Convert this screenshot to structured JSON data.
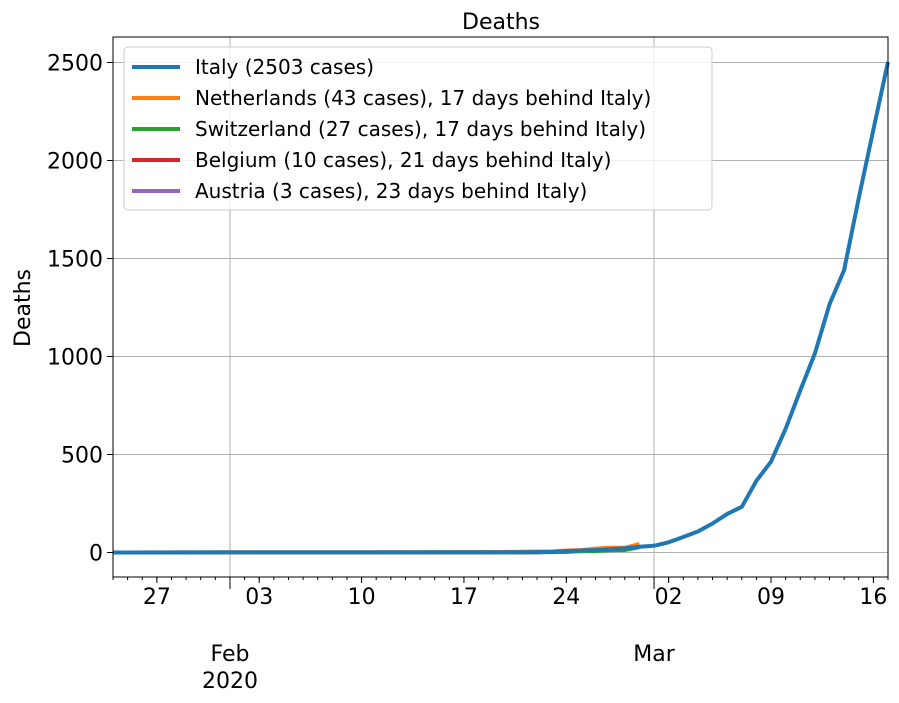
{
  "chart_data": {
    "type": "line",
    "title": "Deaths",
    "xlabel": "",
    "ylabel": "Deaths",
    "x_axis": {
      "type": "date",
      "range": [
        "2020-01-24",
        "2020-03-17"
      ],
      "major_ticks": [
        {
          "date": "2020-01-27",
          "label": "27"
        },
        {
          "date": "2020-02-03",
          "label": "03"
        },
        {
          "date": "2020-02-10",
          "label": "10"
        },
        {
          "date": "2020-02-17",
          "label": "17"
        },
        {
          "date": "2020-02-24",
          "label": "24"
        },
        {
          "date": "2020-03-02",
          "label": "02"
        },
        {
          "date": "2020-03-09",
          "label": "09"
        },
        {
          "date": "2020-03-16",
          "label": "16"
        }
      ],
      "month_labels": [
        {
          "date": "2020-02-01",
          "label": "Feb",
          "sublabel": "2020"
        },
        {
          "date": "2020-03-01",
          "label": "Mar",
          "sublabel": ""
        }
      ]
    },
    "ylim": [
      -125,
      2630
    ],
    "yticks": [
      0,
      500,
      1000,
      1500,
      2000,
      2500
    ],
    "grid": true,
    "legend_position": "top-left",
    "series": [
      {
        "name": "Italy (2503 cases)",
        "color": "#1f77b4",
        "x": [
          "2020-01-24",
          "2020-02-21",
          "2020-02-22",
          "2020-02-23",
          "2020-02-24",
          "2020-02-25",
          "2020-02-26",
          "2020-02-27",
          "2020-02-28",
          "2020-02-29",
          "2020-03-01",
          "2020-03-02",
          "2020-03-03",
          "2020-03-04",
          "2020-03-05",
          "2020-03-06",
          "2020-03-07",
          "2020-03-08",
          "2020-03-09",
          "2020-03-10",
          "2020-03-11",
          "2020-03-12",
          "2020-03-13",
          "2020-03-14",
          "2020-03-15",
          "2020-03-16",
          "2020-03-17"
        ],
        "y": [
          0,
          1,
          2,
          3,
          7,
          10,
          12,
          17,
          21,
          29,
          34,
          52,
          79,
          107,
          148,
          197,
          233,
          366,
          463,
          631,
          827,
          1016,
          1266,
          1441,
          1809,
          2158,
          2503
        ]
      },
      {
        "name": "Netherlands (43 cases), 17 days behind Italy)",
        "color": "#ff7f0e",
        "x": [
          "2020-01-24",
          "2020-02-17",
          "2020-02-18",
          "2020-02-19",
          "2020-02-20",
          "2020-02-21",
          "2020-02-22",
          "2020-02-23",
          "2020-02-24",
          "2020-02-25",
          "2020-02-26",
          "2020-02-27",
          "2020-02-28",
          "2020-02-29"
        ],
        "y": [
          0,
          1,
          1,
          2,
          3,
          4,
          5,
          5,
          10,
          12,
          20,
          24,
          24,
          43
        ]
      },
      {
        "name": "Switzerland (27 cases), 17 days behind Italy)",
        "color": "#2ca02c",
        "x": [
          "2020-01-24",
          "2020-02-21",
          "2020-02-22",
          "2020-02-23",
          "2020-02-24",
          "2020-02-25",
          "2020-02-26",
          "2020-02-27",
          "2020-02-28",
          "2020-02-29"
        ],
        "y": [
          0,
          1,
          1,
          2,
          3,
          6,
          7,
          11,
          13,
          27
        ]
      },
      {
        "name": "Belgium (10 cases), 21 days behind Italy)",
        "color": "#d62728",
        "x": [
          "2020-01-24",
          "2020-02-22",
          "2020-02-23",
          "2020-02-24",
          "2020-02-25"
        ],
        "y": [
          0,
          1,
          3,
          4,
          10
        ]
      },
      {
        "name": "Austria (3 cases), 23 days behind Italy)",
        "color": "#9467bd",
        "x": [
          "2020-01-24",
          "2020-02-18",
          "2020-02-19",
          "2020-02-20",
          "2020-02-21",
          "2020-02-22",
          "2020-02-23"
        ],
        "y": [
          0,
          0,
          1,
          1,
          1,
          2,
          3
        ]
      }
    ]
  }
}
